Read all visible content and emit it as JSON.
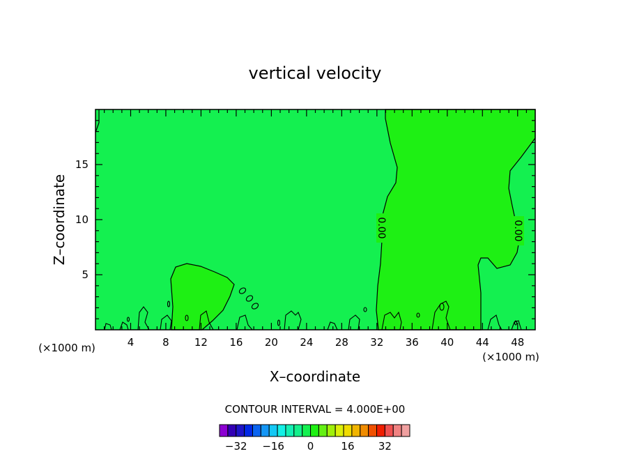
{
  "chart_data": {
    "type": "contour",
    "title": "vertical velocity",
    "xlabel": "X–coordinate",
    "ylabel": "Z–coordinate",
    "x_unit": "(×1000 m)",
    "z_unit": "(×1000 m)",
    "xlim": [
      0,
      50
    ],
    "ylim": [
      0,
      20
    ],
    "x_ticks": [
      4,
      8,
      12,
      16,
      20,
      24,
      28,
      32,
      36,
      40,
      44,
      48
    ],
    "y_ticks": [
      5,
      10,
      15
    ],
    "contour_label": "0.00",
    "contour_interval_text": "CONTOUR INTERVAL = 4.000E+00",
    "colorbar": {
      "colors": [
        "#8c00d2",
        "#3200b4",
        "#1e14c8",
        "#0028e6",
        "#0a64f0",
        "#1496f5",
        "#14c8f5",
        "#14f0e6",
        "#14f0b4",
        "#14f08c",
        "#14f050",
        "#1ef014",
        "#64f014",
        "#a0f00a",
        "#dcf00a",
        "#f0dc00",
        "#f0b400",
        "#f08c00",
        "#f05000",
        "#f01e00",
        "#f05050",
        "#f08282",
        "#f0a0a0"
      ],
      "tick_labels": [
        "−32",
        "−16",
        "0",
        "16",
        "32"
      ]
    },
    "regions": [
      {
        "level": 0,
        "color": "#14f050"
      },
      {
        "level": 2,
        "color": "#1ef014"
      }
    ]
  }
}
